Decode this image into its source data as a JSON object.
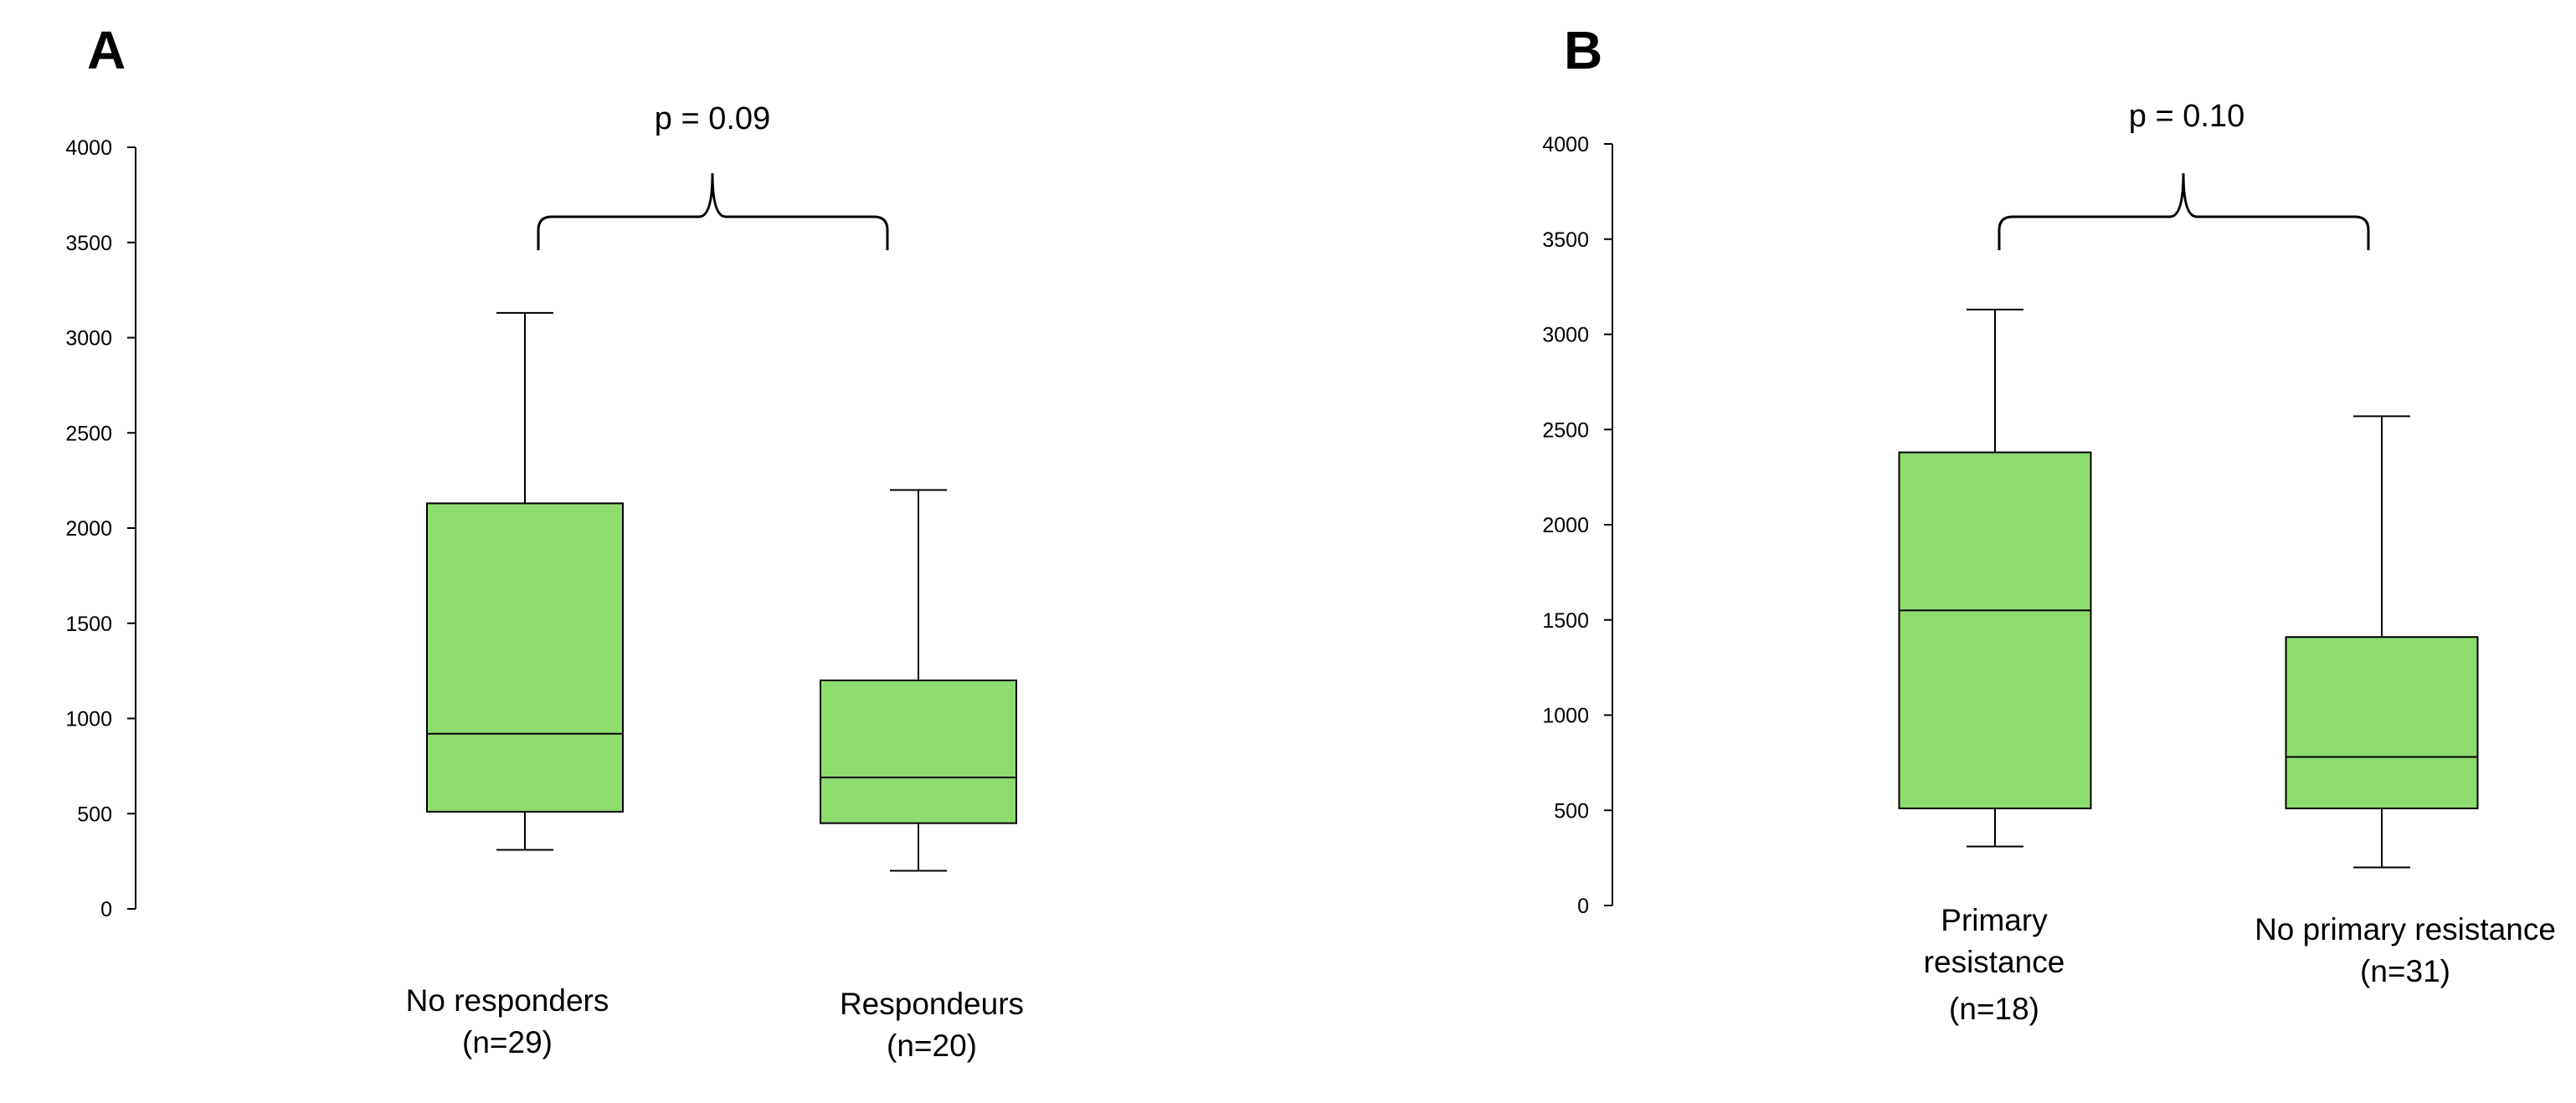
{
  "chart_data": [
    {
      "type": "box",
      "panel": "A",
      "ylim": [
        0,
        4000
      ],
      "yticks": [
        0,
        500,
        1000,
        1500,
        2000,
        2500,
        3000,
        3500,
        4000
      ],
      "grid": false,
      "categories": [
        {
          "label_lines": [
            "No responders",
            "(n=29)"
          ],
          "min": 310,
          "q1": 510,
          "median": 920,
          "q3": 2130,
          "max": 3130
        },
        {
          "label_lines": [
            "Respondeurs",
            "(n=20)"
          ],
          "min": 200,
          "q1": 450,
          "median": 690,
          "q3": 1200,
          "max": 2200
        }
      ],
      "annotation": "p = 0.09"
    },
    {
      "type": "box",
      "panel": "B",
      "ylim": [
        0,
        4000
      ],
      "yticks": [
        0,
        500,
        1000,
        1500,
        2000,
        2500,
        3000,
        3500,
        4000
      ],
      "grid": false,
      "categories": [
        {
          "label_lines": [
            "Primary",
            "resistance",
            "(n=18)"
          ],
          "min": 310,
          "q1": 510,
          "median": 1550,
          "q3": 2380,
          "max": 3130
        },
        {
          "label_lines": [
            "No primary resistance",
            "(n=31)"
          ],
          "min": 200,
          "q1": 510,
          "median": 780,
          "q3": 1410,
          "max": 2570
        }
      ],
      "annotation": "p = 0.10"
    }
  ],
  "colors": {
    "box_fill": "#8ddc6e",
    "stroke": "#000000"
  }
}
